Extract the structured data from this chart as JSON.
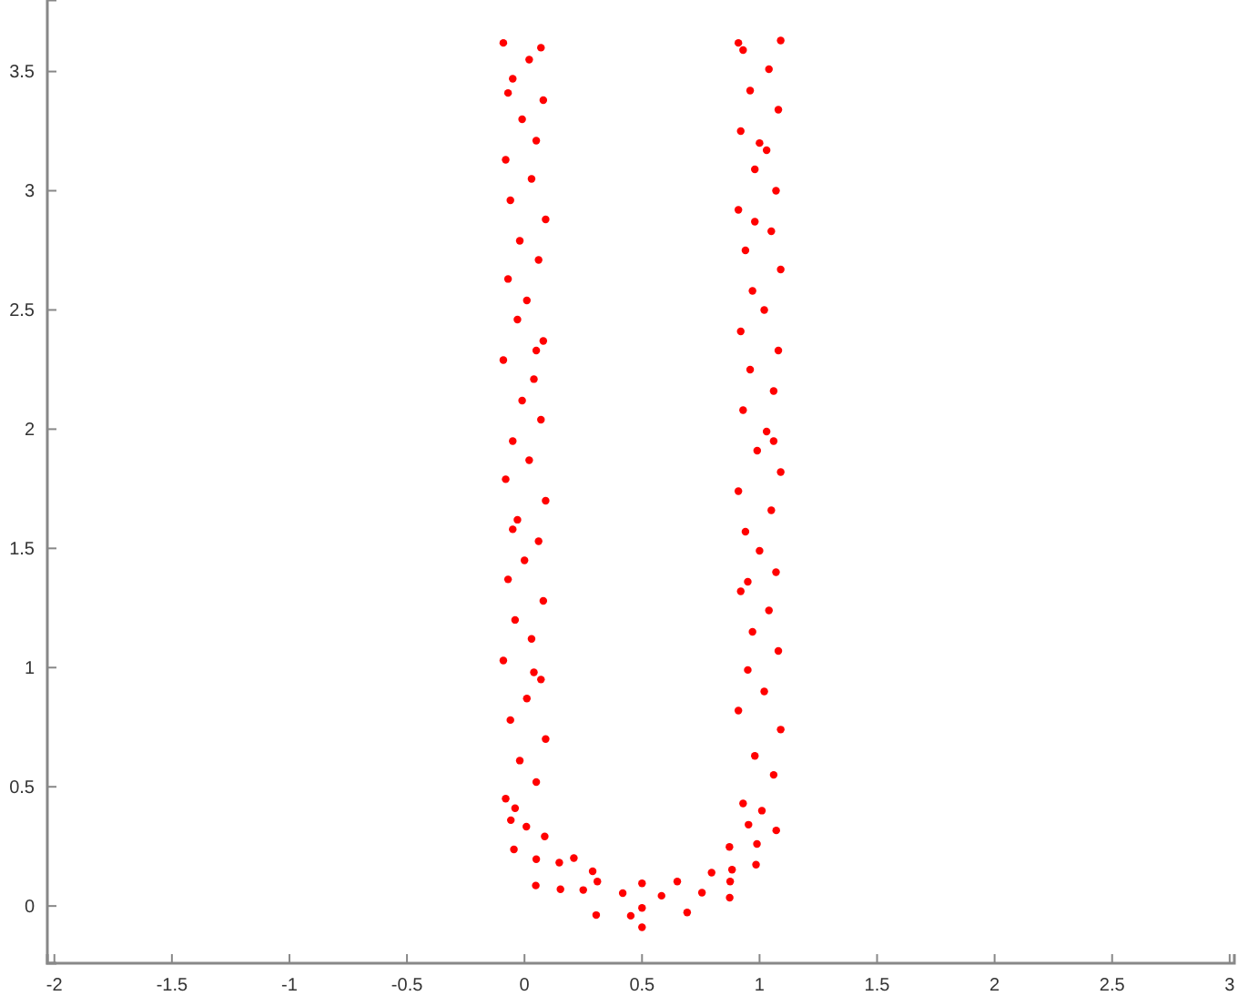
{
  "chart_data": {
    "type": "scatter",
    "marker": "circle",
    "grid": false,
    "xlim": [
      -2.03,
      3.02
    ],
    "ylim": [
      -0.24,
      3.8
    ],
    "xticks": [
      -2,
      -1.5,
      -1,
      -0.5,
      0,
      0.5,
      1,
      1.5,
      2,
      2.5,
      3
    ],
    "yticks": [
      0,
      0.5,
      1,
      1.5,
      2,
      2.5,
      3,
      3.5
    ],
    "series": [
      {
        "color": "#ff0000",
        "x": [
          -0.08,
          0.05,
          -0.02,
          0.09,
          -0.06,
          0.01,
          0.07,
          -0.09,
          0.03,
          -0.04,
          0.08,
          -0.07,
          0.0,
          0.06,
          -0.03,
          0.09,
          -0.08,
          0.02,
          -0.05,
          0.07,
          -0.01,
          0.04,
          -0.09,
          0.08,
          -0.03,
          0.01,
          -0.07,
          0.06,
          -0.02,
          0.09,
          -0.06,
          0.03,
          -0.08,
          0.05,
          -0.01,
          0.08,
          -0.05,
          0.02,
          -0.09,
          0.07,
          -0.04,
          0.04,
          -0.05,
          0.05,
          -0.07,
          0.93,
          1.06,
          0.98,
          1.09,
          0.91,
          1.02,
          0.95,
          1.08,
          0.97,
          1.04,
          0.92,
          1.07,
          1.0,
          0.94,
          1.05,
          0.91,
          1.09,
          0.99,
          1.03,
          0.93,
          1.06,
          0.96,
          1.08,
          0.92,
          1.02,
          0.97,
          1.09,
          0.94,
          1.05,
          0.91,
          1.07,
          0.98,
          1.03,
          0.92,
          1.08,
          0.96,
          1.04,
          0.93,
          1.09,
          0.91,
          1.01,
          0.95,
          1.06,
          0.98,
          1.0,
          0.008,
          0.086,
          -0.045,
          0.05,
          0.148,
          0.048,
          0.153,
          0.29,
          0.25,
          0.305,
          0.418,
          0.5,
          0.5,
          0.5,
          0.583,
          0.692,
          0.65,
          0.755,
          0.873,
          0.796,
          0.883,
          0.872,
          0.985,
          0.989,
          0.953,
          1.071,
          -0.058,
          0.31,
          0.452,
          0.875,
          0.21
        ],
        "values": [
          0.45,
          0.52,
          0.61,
          0.7,
          0.78,
          0.87,
          0.95,
          1.03,
          1.12,
          1.2,
          1.28,
          1.37,
          1.45,
          1.53,
          1.62,
          1.7,
          1.79,
          1.87,
          1.95,
          2.04,
          2.12,
          2.21,
          2.29,
          2.37,
          2.46,
          2.54,
          2.63,
          2.71,
          2.79,
          2.88,
          2.96,
          3.05,
          3.13,
          3.21,
          3.3,
          3.38,
          3.47,
          3.55,
          3.62,
          3.6,
          0.41,
          0.98,
          1.58,
          2.33,
          3.41,
          0.43,
          0.55,
          0.63,
          0.74,
          0.82,
          0.9,
          0.99,
          1.07,
          1.15,
          1.24,
          1.32,
          1.4,
          1.49,
          1.57,
          1.66,
          1.74,
          1.82,
          1.91,
          1.99,
          2.08,
          2.16,
          2.25,
          2.33,
          2.41,
          2.5,
          2.58,
          2.67,
          2.75,
          2.83,
          2.92,
          3.0,
          3.09,
          3.17,
          3.25,
          3.34,
          3.42,
          3.51,
          3.59,
          3.63,
          3.62,
          0.4,
          1.36,
          1.95,
          2.87,
          3.2,
          0.333,
          0.292,
          0.237,
          0.196,
          0.182,
          0.086,
          0.07,
          0.146,
          0.067,
          -0.038,
          0.054,
          -0.008,
          0.095,
          -0.089,
          0.043,
          -0.027,
          0.103,
          0.056,
          0.035,
          0.14,
          0.152,
          0.248,
          0.173,
          0.26,
          0.341,
          0.317,
          0.36,
          0.103,
          -0.041,
          0.103,
          0.201
        ]
      }
    ]
  }
}
